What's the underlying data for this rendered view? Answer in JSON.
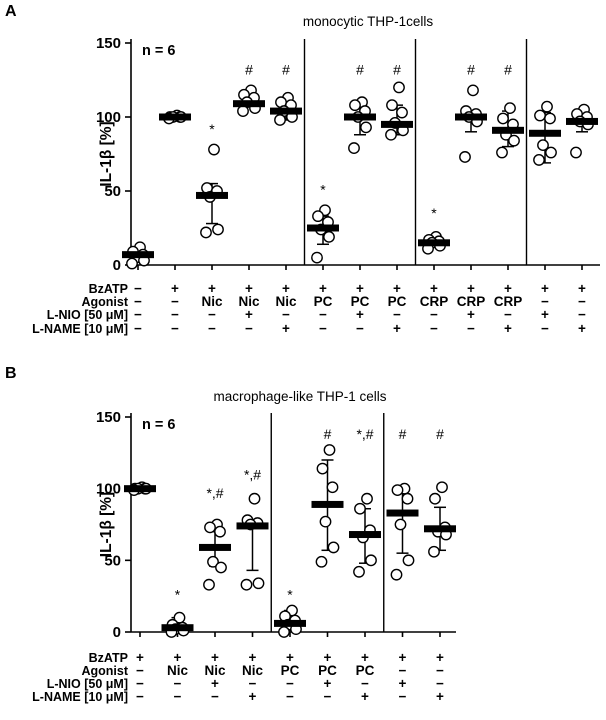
{
  "colors": {
    "foreground": "#000000",
    "marker_fill": "#ffffff",
    "background": "#ffffff"
  },
  "chart_data": [
    {
      "type": "scatter",
      "panel_letter": "A",
      "title": "monocytic THP-1cells",
      "annotation": "n = 6",
      "ylabel": "IL-1β [%]",
      "ylim": [
        0,
        150
      ],
      "yticks": [
        0,
        50,
        100,
        150
      ],
      "grid": false,
      "marker": "open-circle",
      "bar_stat": "median-bar",
      "row_labels": [
        "BzATP",
        "Agonist",
        "L-NIO [50 μM]",
        "L-NAME [10 μM]"
      ],
      "separators_after": [
        4,
        7,
        10
      ],
      "columns": [
        {
          "conditions": [
            "−",
            "−",
            "−",
            "−"
          ],
          "points": [
            12,
            9,
            7,
            5,
            3,
            1
          ],
          "bar": 7,
          "sig": null,
          "sig_at": null,
          "whisker": null
        },
        {
          "conditions": [
            "+",
            "−",
            "−",
            "−"
          ],
          "points": [
            101,
            100,
            100,
            100,
            100,
            99
          ],
          "bar": 100,
          "sig": null,
          "sig_at": null,
          "whisker": null
        },
        {
          "conditions": [
            "+",
            "Nic",
            "−",
            "−"
          ],
          "points": [
            78,
            52,
            50,
            46,
            24,
            22
          ],
          "bar": 47,
          "sig": "*",
          "sig_at": 92,
          "whisker": [
            28,
            55
          ]
        },
        {
          "conditions": [
            "+",
            "Nic",
            "+",
            "−"
          ],
          "points": [
            118,
            115,
            113,
            110,
            106,
            104
          ],
          "bar": 109,
          "sig": "#",
          "sig_at": 132,
          "whisker": null
        },
        {
          "conditions": [
            "+",
            "Nic",
            "−",
            "+"
          ],
          "points": [
            113,
            110,
            108,
            104,
            100,
            98
          ],
          "bar": 104,
          "sig": "#",
          "sig_at": 132,
          "whisker": [
            98,
            110
          ]
        },
        {
          "conditions": [
            "+",
            "PC",
            "−",
            "−"
          ],
          "points": [
            37,
            33,
            29,
            24,
            19,
            5
          ],
          "bar": 25,
          "sig": "*",
          "sig_at": 51,
          "whisker": [
            14,
            33
          ]
        },
        {
          "conditions": [
            "+",
            "PC",
            "+",
            "−"
          ],
          "points": [
            110,
            108,
            104,
            100,
            93,
            79
          ],
          "bar": 100,
          "sig": "#",
          "sig_at": 132,
          "whisker": [
            88,
            106
          ]
        },
        {
          "conditions": [
            "+",
            "PC",
            "−",
            "+"
          ],
          "points": [
            120,
            108,
            103,
            96,
            91,
            88
          ],
          "bar": 95,
          "sig": "#",
          "sig_at": 132,
          "whisker": [
            88,
            108
          ]
        },
        {
          "conditions": [
            "+",
            "CRP",
            "−",
            "−"
          ],
          "points": [
            19,
            17,
            16,
            15,
            13,
            11
          ],
          "bar": 15,
          "sig": "*",
          "sig_at": 35,
          "whisker": null
        },
        {
          "conditions": [
            "+",
            "CRP",
            "+",
            "−"
          ],
          "points": [
            118,
            104,
            102,
            100,
            97,
            73
          ],
          "bar": 100,
          "sig": "#",
          "sig_at": 132,
          "whisker": [
            90,
            104
          ]
        },
        {
          "conditions": [
            "+",
            "CRP",
            "−",
            "+"
          ],
          "points": [
            106,
            99,
            95,
            88,
            84,
            76
          ],
          "bar": 91,
          "sig": "#",
          "sig_at": 132,
          "whisker": [
            80,
            104
          ]
        },
        {
          "conditions": [
            "+",
            "−",
            "+",
            "−"
          ],
          "points": [
            107,
            101,
            99,
            81,
            76,
            71
          ],
          "bar": 89,
          "sig": null,
          "sig_at": null,
          "whisker": [
            69,
            103
          ]
        },
        {
          "conditions": [
            "+",
            "−",
            "−",
            "+"
          ],
          "points": [
            105,
            102,
            100,
            97,
            95,
            76
          ],
          "bar": 97,
          "sig": null,
          "sig_at": null,
          "whisker": [
            90,
            103
          ]
        }
      ]
    },
    {
      "type": "scatter",
      "panel_letter": "B",
      "title": "macrophage-like THP-1 cells",
      "annotation": "n = 6",
      "ylabel": "IL-1β [%]",
      "ylim": [
        0,
        150
      ],
      "yticks": [
        0,
        50,
        100,
        150
      ],
      "grid": false,
      "marker": "open-circle",
      "bar_stat": "median-bar",
      "row_labels": [
        "BzATP",
        "Agonist",
        "L-NIO [50 μM]",
        "L-NAME [10 μM]"
      ],
      "separators_after": [
        3,
        6
      ],
      "columns": [
        {
          "conditions": [
            "+",
            "−",
            "−",
            "−"
          ],
          "points": [
            101,
            100,
            100,
            100,
            100,
            99
          ],
          "bar": 100,
          "sig": null,
          "sig_at": null,
          "whisker": null
        },
        {
          "conditions": [
            "+",
            "Nic",
            "−",
            "−"
          ],
          "points": [
            10,
            5,
            3,
            2,
            1,
            0
          ],
          "bar": 3,
          "sig": "*",
          "sig_at": 26,
          "whisker": [
            0,
            10
          ]
        },
        {
          "conditions": [
            "+",
            "Nic",
            "+",
            "−"
          ],
          "points": [
            75,
            73,
            70,
            49,
            45,
            33
          ],
          "bar": 59,
          "sig": "*,#",
          "sig_at": 97,
          "whisker": [
            46,
            70
          ]
        },
        {
          "conditions": [
            "+",
            "Nic",
            "−",
            "+"
          ],
          "points": [
            93,
            78,
            76,
            75,
            34,
            33
          ],
          "bar": 74,
          "sig": "*,#",
          "sig_at": 110,
          "whisker": [
            43,
            78
          ]
        },
        {
          "conditions": [
            "+",
            "PC",
            "−",
            "−"
          ],
          "points": [
            15,
            11,
            8,
            5,
            2,
            0
          ],
          "bar": 6,
          "sig": "*",
          "sig_at": 26,
          "whisker": [
            1,
            15
          ]
        },
        {
          "conditions": [
            "+",
            "PC",
            "+",
            "−"
          ],
          "points": [
            127,
            114,
            101,
            77,
            59,
            49
          ],
          "bar": 89,
          "sig": "#",
          "sig_at": 138,
          "whisker": [
            57,
            120
          ]
        },
        {
          "conditions": [
            "+",
            "PC",
            "−",
            "+"
          ],
          "points": [
            93,
            86,
            71,
            66,
            50,
            42
          ],
          "bar": 68,
          "sig": "*,#",
          "sig_at": 138,
          "whisker": [
            48,
            86
          ]
        },
        {
          "conditions": [
            "+",
            "−",
            "+",
            "−"
          ],
          "points": [
            100,
            99,
            93,
            75,
            50,
            40
          ],
          "bar": 83,
          "sig": "#",
          "sig_at": 138,
          "whisker": [
            55,
            97
          ]
        },
        {
          "conditions": [
            "+",
            "−",
            "−",
            "+"
          ],
          "points": [
            101,
            93,
            73,
            70,
            68,
            56
          ],
          "bar": 72,
          "sig": "#",
          "sig_at": 138,
          "whisker": [
            57,
            87
          ]
        }
      ]
    }
  ]
}
